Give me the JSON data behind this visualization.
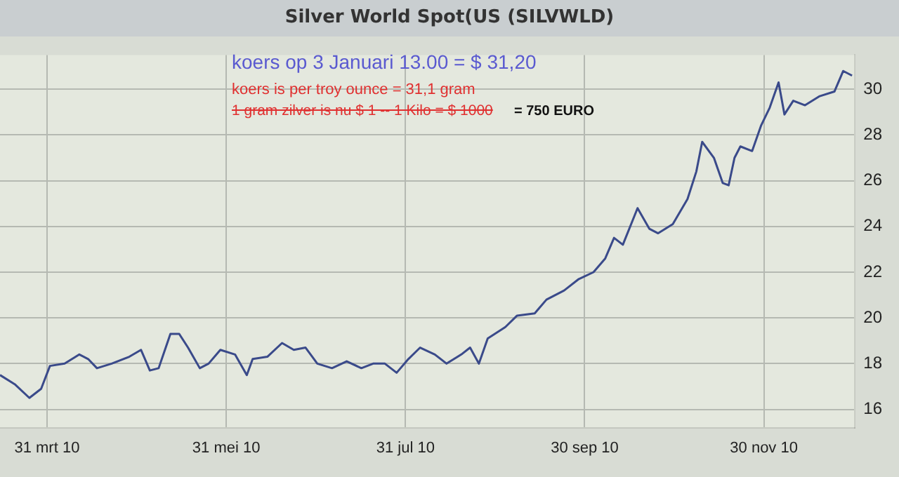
{
  "chart_data": {
    "type": "line",
    "title": "Silver World Spot(US (SILVWLD)",
    "annotations": [
      "koers op 3 Januari 13.00 = $ 31,20",
      "koers is per troy ounce = 31,1 gram",
      "1 gram zilver is nu $ 1 -- 1 Kilo = $ 1000",
      "= 750 EURO"
    ],
    "x": [
      "2010-03-15",
      "2010-03-20",
      "2010-03-25",
      "2010-03-29",
      "2010-04-01",
      "2010-04-06",
      "2010-04-11",
      "2010-04-14",
      "2010-04-17",
      "2010-04-22",
      "2010-04-28",
      "2010-05-02",
      "2010-05-05",
      "2010-05-08",
      "2010-05-12",
      "2010-05-15",
      "2010-05-18",
      "2010-05-22",
      "2010-05-25",
      "2010-05-29",
      "2010-06-03",
      "2010-06-07",
      "2010-06-09",
      "2010-06-14",
      "2010-06-19",
      "2010-06-23",
      "2010-06-27",
      "2010-07-01",
      "2010-07-06",
      "2010-07-11",
      "2010-07-16",
      "2010-07-20",
      "2010-07-24",
      "2010-07-28",
      "2010-08-01",
      "2010-08-05",
      "2010-08-10",
      "2010-08-14",
      "2010-08-19",
      "2010-08-22",
      "2010-08-25",
      "2010-08-28",
      "2010-09-03",
      "2010-09-07",
      "2010-09-13",
      "2010-09-17",
      "2010-09-23",
      "2010-09-28",
      "2010-10-03",
      "2010-10-07",
      "2010-10-10",
      "2010-10-13",
      "2010-10-18",
      "2010-10-22",
      "2010-10-25",
      "2010-10-30",
      "2010-11-04",
      "2010-11-07",
      "2010-11-09",
      "2010-11-13",
      "2010-11-16",
      "2010-11-18",
      "2010-11-20",
      "2010-11-22",
      "2010-11-26",
      "2010-11-29",
      "2010-12-02",
      "2010-12-05",
      "2010-12-07",
      "2010-12-10",
      "2010-12-14",
      "2010-12-19",
      "2010-12-24",
      "2010-12-27",
      "2010-12-30"
    ],
    "series": [
      {
        "color": "#3a4a8a",
        "values": [
          17.5,
          17.1,
          16.5,
          16.9,
          17.9,
          18.0,
          18.4,
          18.2,
          17.8,
          18.0,
          18.3,
          18.6,
          17.7,
          17.8,
          19.3,
          19.3,
          18.7,
          17.8,
          18.0,
          18.6,
          18.4,
          17.5,
          18.2,
          18.3,
          18.9,
          18.6,
          18.7,
          18.0,
          17.8,
          18.1,
          17.8,
          18.0,
          18.0,
          17.6,
          18.2,
          18.7,
          18.4,
          18.0,
          18.4,
          18.7,
          18.0,
          19.1,
          19.6,
          20.1,
          20.2,
          20.8,
          21.2,
          21.7,
          22.0,
          22.6,
          23.5,
          23.2,
          24.8,
          23.9,
          23.7,
          24.1,
          25.2,
          26.4,
          27.7,
          27.0,
          25.9,
          25.8,
          27.0,
          27.5,
          27.3,
          28.4,
          29.2,
          30.3,
          28.9,
          29.5,
          29.3,
          29.7,
          29.9,
          30.8,
          30.6
        ]
      }
    ],
    "xlim": [
      "2010-03-15",
      "2010-12-31"
    ],
    "xticks": [
      {
        "value": "2010-03-31",
        "label": "31 mrt 10"
      },
      {
        "value": "2010-05-31",
        "label": "31 mei 10"
      },
      {
        "value": "2010-07-31",
        "label": "31 jul 10"
      },
      {
        "value": "2010-09-30",
        "label": "30 sep 10"
      },
      {
        "value": "2010-11-30",
        "label": "30 nov 10"
      }
    ],
    "ylim": [
      15.2,
      31.5
    ],
    "yticks": [
      16,
      18,
      20,
      22,
      24,
      26,
      28,
      30
    ],
    "grid": true,
    "legend": false,
    "marker": "none",
    "line_style": "solid"
  }
}
